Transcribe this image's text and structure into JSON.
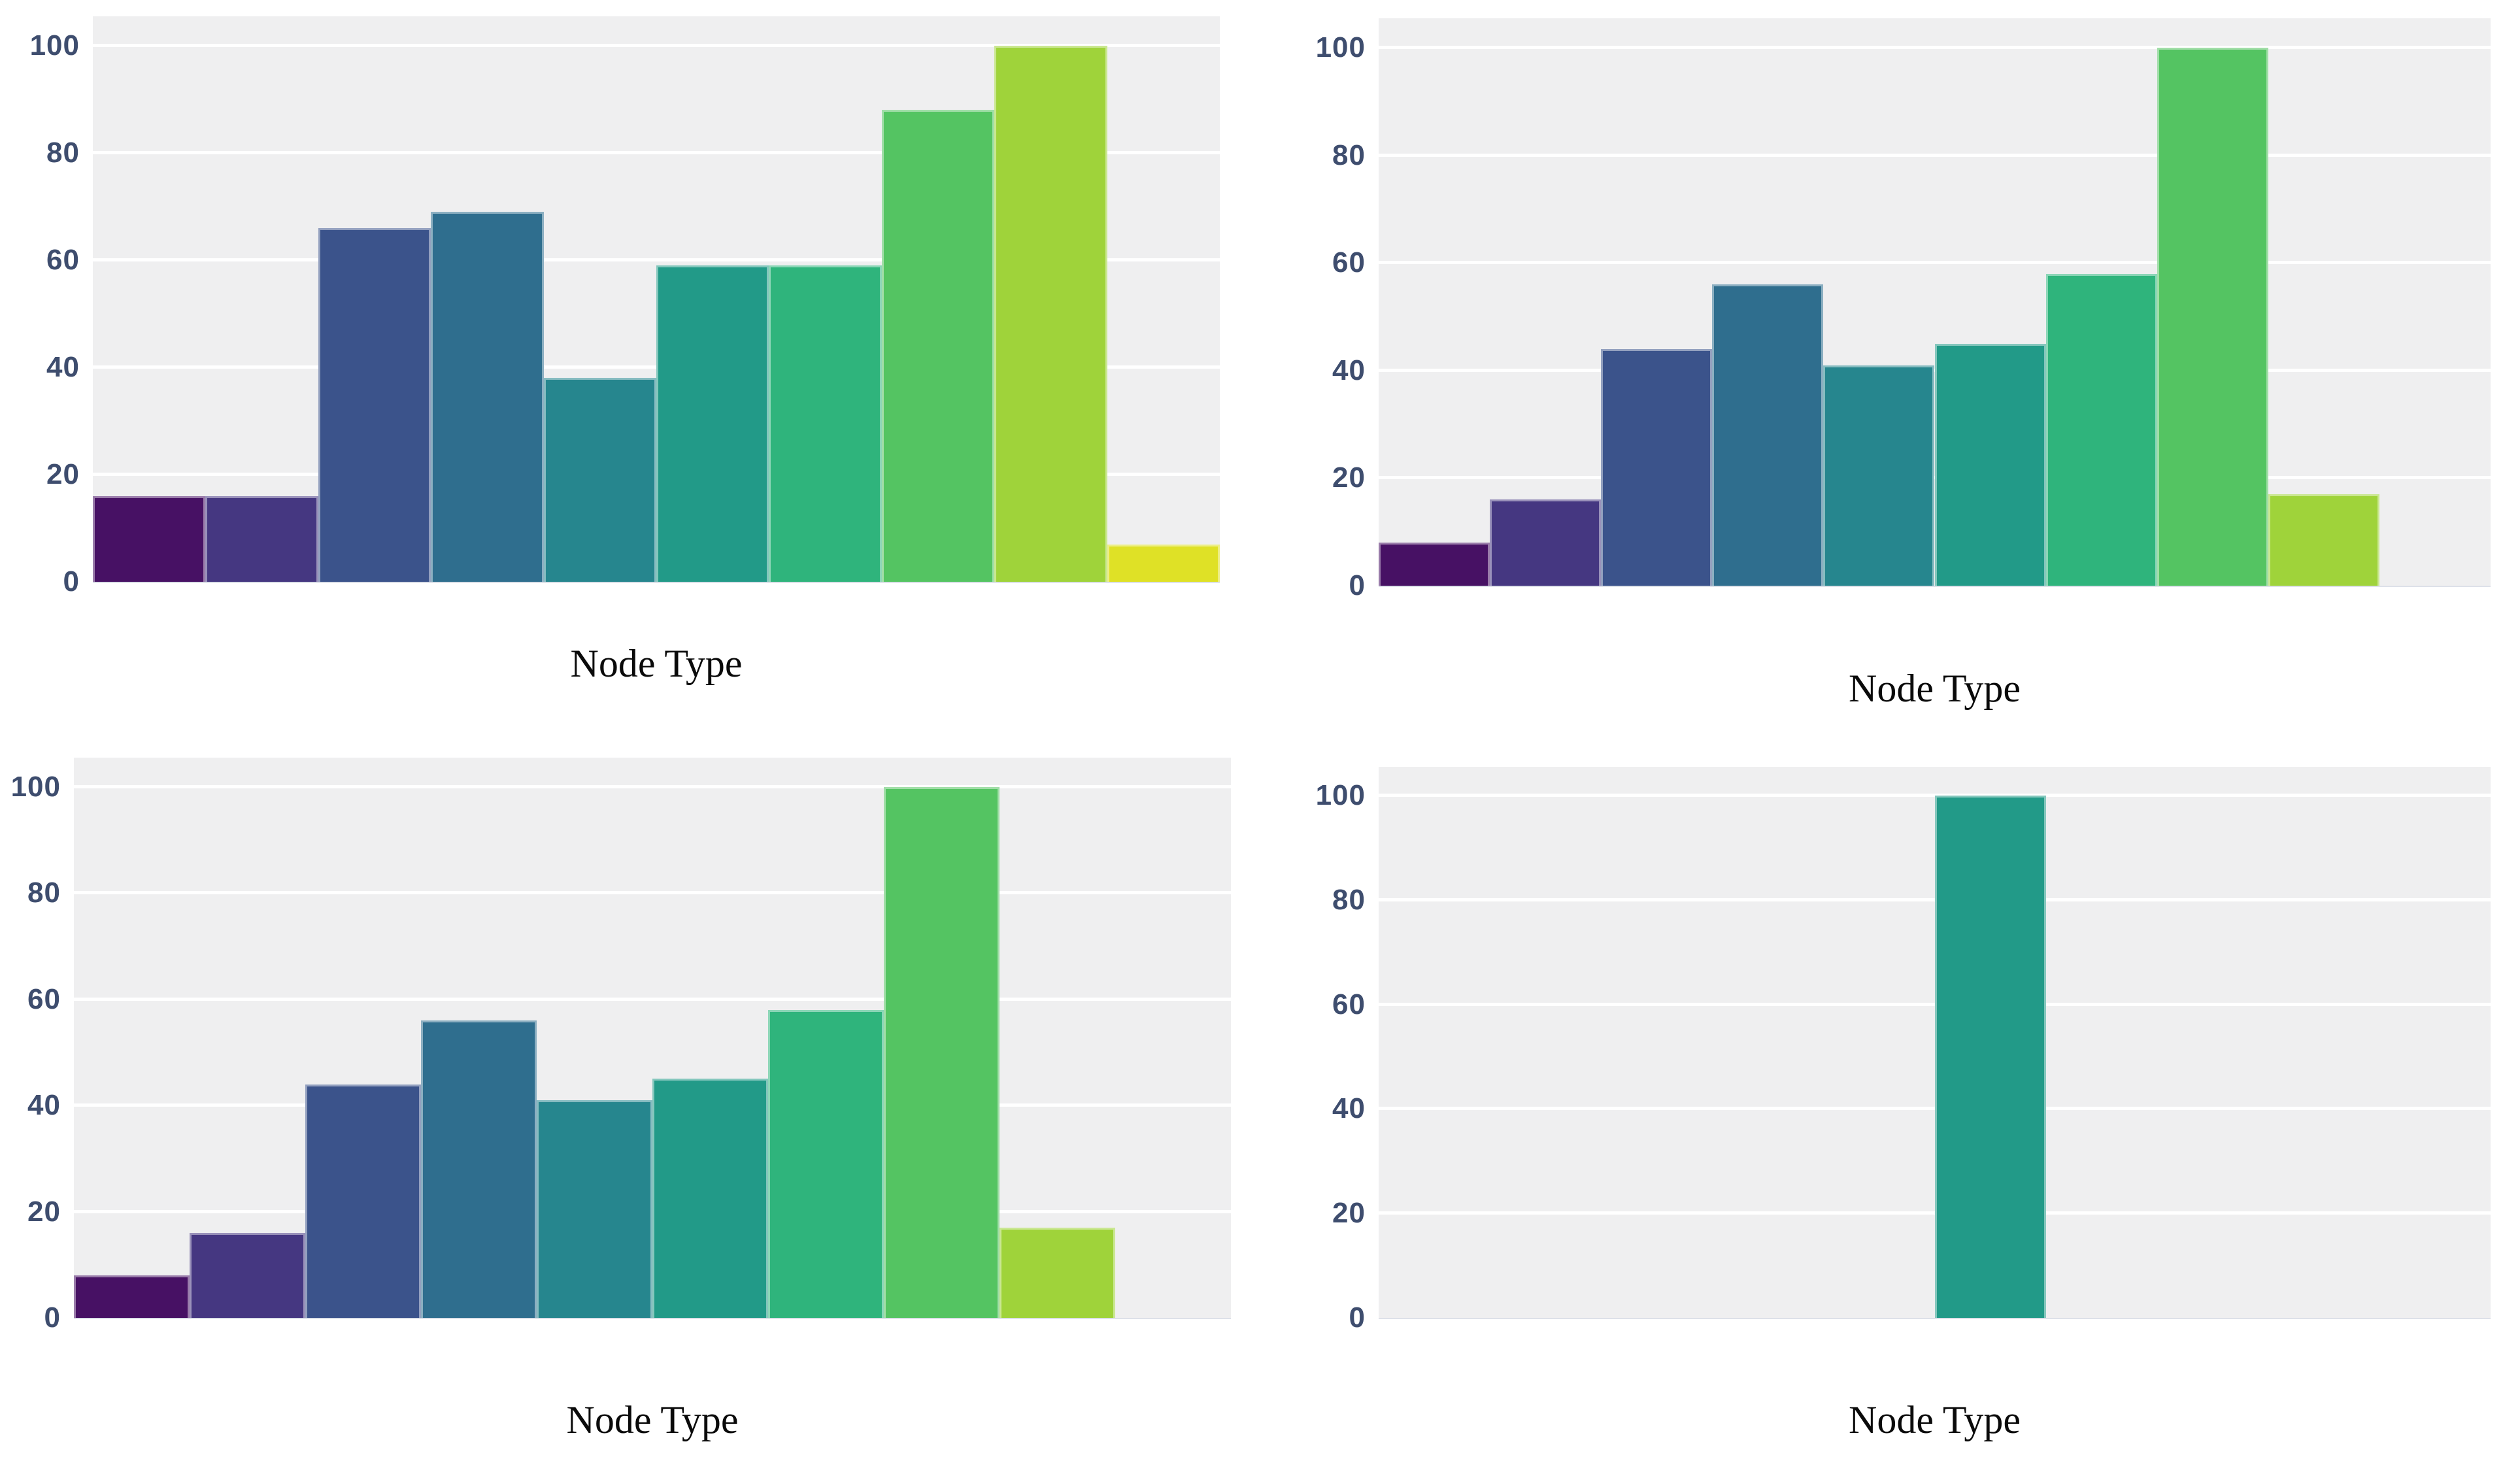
{
  "style": {
    "plot_background": "#efeff0",
    "grid_color": "#ffffff",
    "tick_label_color": "#3e4d6e",
    "axis_label_color": "#0a0a0a",
    "bar_palette": [
      "#471164",
      "#453781",
      "#3b538b",
      "#2f6e8e",
      "#26868e",
      "#229a88",
      "#2fb47c",
      "#54c462",
      "#9fd33a",
      "#dfe126"
    ]
  },
  "chart_data": [
    {
      "position": "top-left",
      "type": "bar",
      "title": "",
      "xlabel": "Node Type",
      "ylabel": "",
      "ylim": [
        0,
        100
      ],
      "yticks": [
        0,
        20,
        40,
        60,
        80,
        100
      ],
      "grid": "horizontal-on",
      "legend": "none",
      "x_tick_labels": "none",
      "bins": 10,
      "values": [
        16,
        16,
        66,
        69,
        38,
        59,
        59,
        88,
        100,
        7
      ]
    },
    {
      "position": "top-right",
      "type": "bar",
      "title": "",
      "xlabel": "Node Type",
      "ylabel": "",
      "ylim": [
        0,
        100
      ],
      "yticks": [
        0,
        20,
        40,
        60,
        80,
        100
      ],
      "grid": "horizontal-on",
      "legend": "none",
      "x_tick_labels": "none",
      "bins": 10,
      "values": [
        8,
        16,
        44,
        56,
        41,
        45,
        58,
        100,
        17,
        0
      ]
    },
    {
      "position": "bottom-left",
      "type": "bar",
      "title": "",
      "xlabel": "Node Type",
      "ylabel": "",
      "ylim": [
        0,
        100
      ],
      "yticks": [
        0,
        20,
        40,
        60,
        80,
        100
      ],
      "grid": "horizontal-on",
      "legend": "none",
      "x_tick_labels": "none",
      "bins": 10,
      "values": [
        8,
        16,
        44,
        56,
        41,
        45,
        58,
        100,
        17,
        0
      ]
    },
    {
      "position": "bottom-right",
      "type": "bar",
      "title": "",
      "xlabel": "Node Type",
      "ylabel": "",
      "ylim": [
        0,
        100
      ],
      "yticks": [
        0,
        20,
        40,
        60,
        80,
        100
      ],
      "grid": "horizontal-on",
      "legend": "none",
      "x_tick_labels": "none",
      "bins": 10,
      "values": [
        0,
        0,
        0,
        0,
        0,
        100,
        0,
        0,
        0,
        0
      ]
    }
  ]
}
